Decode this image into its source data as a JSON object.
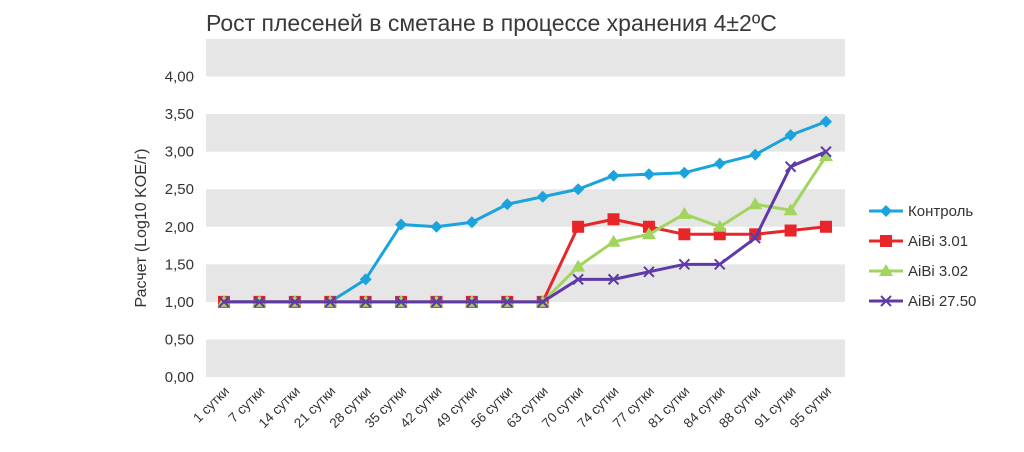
{
  "chart_data": {
    "type": "line",
    "title": "Рост плесеней в сметане в процессе хранения 4±2ºС",
    "xlabel": "",
    "ylabel": "Расчет (Log10 KOE/г)",
    "ylim": [
      0,
      4.5
    ],
    "yticks": [
      "0,00",
      "0,50",
      "1,00",
      "1,50",
      "2,00",
      "2,50",
      "3,00",
      "3,50",
      "4,00"
    ],
    "grid": "alternating horizontal bands",
    "legend_position": "right",
    "categories": [
      "1 сутки",
      "7 сутки",
      "14 сутки",
      "21 сутки",
      "28 сутки",
      "35 сутки",
      "42 сутки",
      "49 сутки",
      "56 сутки",
      "63 сутки",
      "70 сутки",
      "74 сутки",
      "77 сутки",
      "81 сутки",
      "84 сутки",
      "88 сутки",
      "91 сутки",
      "95 сутки"
    ],
    "series": [
      {
        "name": "Контроль",
        "color": "#1AA3DD",
        "marker": "diamond",
        "values": [
          1.0,
          1.0,
          1.0,
          1.0,
          1.3,
          2.03,
          2.0,
          2.06,
          2.3,
          2.4,
          2.5,
          2.68,
          2.7,
          2.72,
          2.84,
          2.96,
          3.22,
          3.4
        ]
      },
      {
        "name": "AiBi 3.01",
        "color": "#E8262A",
        "marker": "square",
        "values": [
          1.0,
          1.0,
          1.0,
          1.0,
          1.0,
          1.0,
          1.0,
          1.0,
          1.0,
          1.0,
          2.0,
          2.1,
          2.0,
          1.9,
          1.9,
          1.9,
          1.95,
          2.0
        ]
      },
      {
        "name": "AiBi 3.02",
        "color": "#A2D45E",
        "marker": "triangle",
        "values": [
          1.0,
          1.0,
          1.0,
          1.0,
          1.0,
          1.0,
          1.0,
          1.0,
          1.0,
          1.0,
          1.47,
          1.8,
          1.9,
          2.17,
          2.0,
          2.3,
          2.22,
          2.94
        ]
      },
      {
        "name": "AiBi 27.50",
        "color": "#5E3AA8",
        "marker": "x",
        "values": [
          1.0,
          1.0,
          1.0,
          1.0,
          1.0,
          1.0,
          1.0,
          1.0,
          1.0,
          1.0,
          1.3,
          1.3,
          1.4,
          1.5,
          1.5,
          1.85,
          2.8,
          3.0
        ]
      }
    ]
  }
}
